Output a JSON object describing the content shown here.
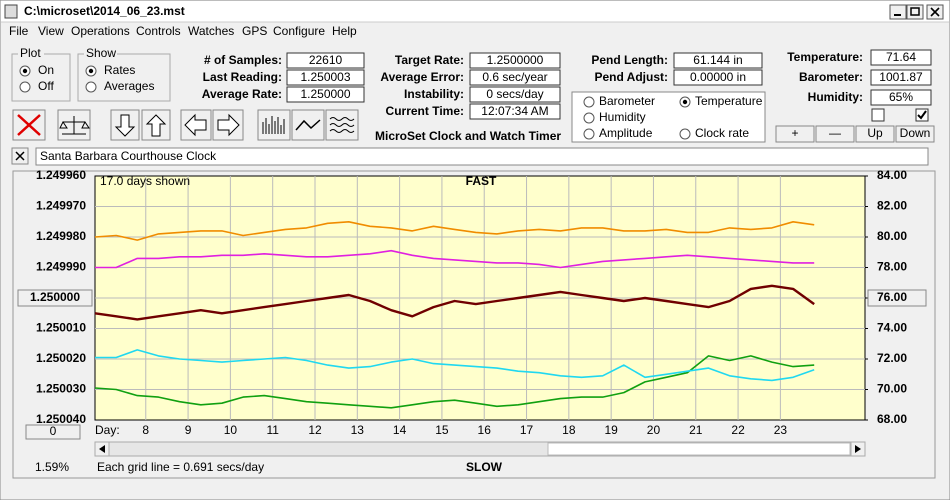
{
  "window": {
    "title": "C:\\microset\\2014_06_23.mst"
  },
  "menu": [
    "File",
    "View",
    "Operations",
    "Controls",
    "Watches",
    "GPS",
    "Configure",
    "Help"
  ],
  "plot_group": {
    "title": "Plot",
    "options": [
      "On",
      "Off"
    ],
    "selected": 0
  },
  "show_group": {
    "title": "Show",
    "options": [
      "Rates",
      "Averages"
    ],
    "selected": 0
  },
  "fields": [
    [
      {
        "label": "# of Samples:",
        "value": "22610"
      },
      {
        "label": "Last Reading:",
        "value": "1.250003"
      },
      {
        "label": "Average Rate:",
        "value": "1.250000"
      }
    ],
    [
      {
        "label": "Target Rate:",
        "value": "1.2500000"
      },
      {
        "label": "Average Error:",
        "value": "0.6 sec/year"
      },
      {
        "label": "Instability:",
        "value": "0 secs/day"
      },
      {
        "label": "Current Time:",
        "value": "12:07:34 AM"
      }
    ],
    [
      {
        "label": "Pend Length:",
        "value": "61.144 in"
      },
      {
        "label": "Pend Adjust:",
        "value": "0.00000 in"
      }
    ],
    [
      {
        "label": "Temperature:",
        "value": "71.64"
      },
      {
        "label": "Barometer:",
        "value": "1001.87"
      },
      {
        "label": "Humidity:",
        "value": "65%"
      }
    ]
  ],
  "app_name": "MicroSet Clock and Watch Timer",
  "scale_buttons": [
    "+",
    "—",
    "Up",
    "Down"
  ],
  "clock_name": "Santa Barbara Courthouse Clock",
  "chart_data": {
    "type": "line",
    "legend_selected": 1,
    "annotations": {
      "days_shown": "17.0 days shown",
      "top": "FAST",
      "bottom": "SLOW",
      "day_label": "Day:",
      "offset_button": "0",
      "percent": "1.59%",
      "grid_note": "Each grid line = 0.691 secs/day"
    },
    "x": [
      6.8,
      7.3,
      7.8,
      8.3,
      8.8,
      9.3,
      9.8,
      10.3,
      10.8,
      11.3,
      11.8,
      12.3,
      12.8,
      13.3,
      13.8,
      14.3,
      14.8,
      15.3,
      15.8,
      16.3,
      16.8,
      17.3,
      17.8,
      18.3,
      18.8,
      19.3,
      19.8,
      20.3,
      20.8,
      21.3,
      21.8,
      22.3,
      22.8,
      23.3,
      23.8
    ],
    "xlim": [
      6.8,
      25
    ],
    "xticks": [
      8,
      9,
      10,
      11,
      12,
      13,
      14,
      15,
      16,
      17,
      18,
      19,
      20,
      21,
      22,
      23
    ],
    "ylim": [
      1.25004,
      1.24996
    ],
    "yticks": [
      {
        "value": 1.24996,
        "label": "1.249960"
      },
      {
        "value": 1.24997,
        "label": "1.249970"
      },
      {
        "value": 1.24998,
        "label": "1.249980"
      },
      {
        "value": 1.24999,
        "label": "1.249990"
      },
      {
        "value": 1.25,
        "label": "1.250000"
      },
      {
        "value": 1.25001,
        "label": "1.250010"
      },
      {
        "value": 1.25002,
        "label": "1.250020"
      },
      {
        "value": 1.25003,
        "label": "1.250030"
      },
      {
        "value": 1.25004,
        "label": "1.250040"
      }
    ],
    "y2lim": [
      68,
      84
    ],
    "y2ticks": [
      {
        "value": 84,
        "label": "84.00"
      },
      {
        "value": 82,
        "label": "82.00"
      },
      {
        "value": 80,
        "label": "80.00"
      },
      {
        "value": 78,
        "label": "78.00"
      },
      {
        "value": 76,
        "label": "76.00"
      },
      {
        "value": 74,
        "label": "74.00"
      },
      {
        "value": 72,
        "label": "72.00"
      },
      {
        "value": 70,
        "label": "70.00"
      },
      {
        "value": 68,
        "label": "68.00"
      }
    ],
    "grid": true,
    "series": [
      {
        "name": "Barometer",
        "color": "#f08c00",
        "axis": "y2",
        "values": [
          80.0,
          80.1,
          79.8,
          80.2,
          80.3,
          80.4,
          80.4,
          80.1,
          80.3,
          80.5,
          80.6,
          80.9,
          81.0,
          80.7,
          80.6,
          80.4,
          80.7,
          80.5,
          80.3,
          80.2,
          80.4,
          80.5,
          80.4,
          80.6,
          80.6,
          80.4,
          80.4,
          80.5,
          80.3,
          80.3,
          80.6,
          80.5,
          80.6,
          81.0,
          80.8
        ]
      },
      {
        "name": "Temperature",
        "color": "#10a010",
        "axis": "y2",
        "values": [
          70.1,
          70.0,
          69.6,
          69.5,
          69.2,
          69.0,
          69.1,
          69.5,
          69.6,
          69.4,
          69.2,
          69.1,
          69.0,
          68.9,
          68.8,
          69.0,
          69.2,
          69.3,
          69.1,
          68.9,
          69.0,
          69.2,
          69.4,
          69.5,
          69.5,
          69.8,
          70.5,
          70.8,
          71.1,
          72.2,
          71.9,
          72.2,
          71.8,
          71.5,
          71.6
        ]
      },
      {
        "name": "Humidity",
        "color": "#e020e0",
        "axis": "y2",
        "values": [
          78.0,
          78.0,
          78.6,
          78.6,
          78.7,
          78.7,
          78.8,
          78.8,
          78.9,
          78.8,
          78.7,
          78.7,
          78.8,
          78.9,
          79.1,
          78.8,
          78.6,
          78.5,
          78.4,
          78.3,
          78.3,
          78.2,
          78.0,
          78.2,
          78.4,
          78.5,
          78.6,
          78.7,
          78.8,
          78.7,
          78.6,
          78.5,
          78.4,
          78.3,
          78.3
        ]
      },
      {
        "name": "Amplitude",
        "color": "#20d8f0",
        "axis": "y2",
        "values": [
          72.1,
          72.1,
          72.6,
          72.2,
          72.0,
          71.9,
          71.8,
          71.9,
          72.0,
          72.1,
          71.9,
          71.6,
          71.4,
          71.5,
          71.8,
          72.0,
          71.7,
          71.6,
          71.5,
          71.4,
          71.2,
          71.1,
          70.9,
          70.8,
          70.9,
          71.6,
          70.8,
          71.0,
          71.2,
          71.4,
          70.9,
          70.7,
          70.6,
          70.8,
          71.3
        ]
      },
      {
        "name": "Clock rate",
        "color": "#700000",
        "axis": "y",
        "values": [
          1.250005,
          1.250006,
          1.250007,
          1.250006,
          1.250005,
          1.250004,
          1.250005,
          1.250004,
          1.250003,
          1.250002,
          1.250001,
          1.25,
          1.249999,
          1.250001,
          1.250004,
          1.250006,
          1.250003,
          1.250001,
          1.250002,
          1.250001,
          1.25,
          1.249999,
          1.249998,
          1.249999,
          1.25,
          1.250001,
          1.25,
          1.250001,
          1.250002,
          1.250003,
          1.250001,
          1.249997,
          1.249996,
          1.249997,
          1.250002
        ]
      }
    ]
  }
}
